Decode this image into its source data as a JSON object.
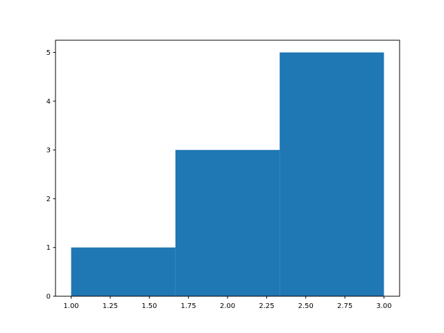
{
  "chart_data": {
    "type": "bar",
    "subtype": "histogram",
    "title": "",
    "xlabel": "",
    "ylabel": "",
    "bin_edges": [
      1.0,
      1.6667,
      2.3333,
      3.0
    ],
    "values": [
      1,
      3,
      5
    ],
    "xlim": [
      0.9,
      3.1
    ],
    "ylim": [
      0,
      5.25
    ],
    "xticks": [
      1.0,
      1.25,
      1.5,
      1.75,
      2.0,
      2.25,
      2.5,
      2.75,
      3.0
    ],
    "xtick_labels": [
      "1.00",
      "1.25",
      "1.50",
      "1.75",
      "2.00",
      "2.25",
      "2.50",
      "2.75",
      "3.00"
    ],
    "yticks": [
      0,
      1,
      2,
      3,
      4,
      5
    ],
    "ytick_labels": [
      "0",
      "1",
      "2",
      "3",
      "4",
      "5"
    ],
    "grid": false,
    "bar_color": "#1f77b4"
  }
}
